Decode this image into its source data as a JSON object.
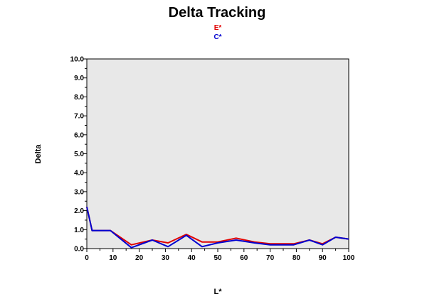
{
  "chart_data": {
    "type": "line",
    "title": "Delta Tracking",
    "xlabel": "L*",
    "ylabel": "Delta",
    "xlim": [
      0,
      100
    ],
    "ylim": [
      0,
      10
    ],
    "x_ticks": [
      0,
      10,
      20,
      30,
      40,
      50,
      60,
      70,
      80,
      90,
      100
    ],
    "y_ticks": [
      0,
      1,
      2,
      3,
      4,
      5,
      6,
      7,
      8,
      9,
      10
    ],
    "y_tick_labels": [
      "0.0",
      "1.0",
      "2.0",
      "3.0",
      "4.0",
      "5.0",
      "6.0",
      "7.0",
      "8.0",
      "9.0",
      "10.0"
    ],
    "grid": false,
    "legend": "top-center",
    "plot_background": "#e8e8e8",
    "series": [
      {
        "name": "E*",
        "color": "#e00000",
        "x": [
          0,
          2,
          9,
          17,
          25,
          31,
          38,
          44,
          50,
          57,
          64,
          70,
          79,
          85,
          90,
          95,
          100
        ],
        "y": [
          2.2,
          0.95,
          0.95,
          0.2,
          0.45,
          0.3,
          0.75,
          0.35,
          0.35,
          0.55,
          0.35,
          0.25,
          0.25,
          0.45,
          0.25,
          0.6,
          0.5
        ]
      },
      {
        "name": "C*",
        "color": "#0000d0",
        "x": [
          0,
          2,
          9,
          17,
          25,
          31,
          38,
          44,
          50,
          57,
          64,
          70,
          79,
          85,
          90,
          95,
          100
        ],
        "y": [
          2.2,
          0.95,
          0.95,
          0.05,
          0.45,
          0.1,
          0.7,
          0.1,
          0.3,
          0.45,
          0.3,
          0.2,
          0.2,
          0.45,
          0.2,
          0.6,
          0.5
        ]
      }
    ]
  }
}
